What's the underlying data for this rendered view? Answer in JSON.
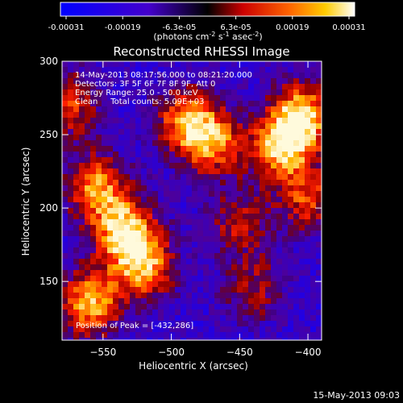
{
  "colorbar": {
    "ticks": [
      "-0.00031",
      "-0.00019",
      "-6.3e-05",
      "6.3e-05",
      "0.00019",
      "0.00031"
    ],
    "unit_main": "(photons cm",
    "unit_sup1": "-2",
    "unit_mid": " s",
    "unit_sup2": "-1",
    "unit_mid2": " asec",
    "unit_sup3": "-2",
    "unit_end": ")",
    "range": [
      -0.00031,
      0.00031
    ],
    "colors": [
      "#0000ff",
      "#5500aa",
      "#000000",
      "#aa0000",
      "#ff5500",
      "#ffcc00",
      "#ffffff"
    ]
  },
  "chart_data": {
    "type": "heatmap",
    "title": "Reconstructed RHESSI Image",
    "xlabel": "Heliocentric X (arcsec)",
    "ylabel": "Heliocentric Y (arcsec)",
    "xlim": [
      -580,
      -390
    ],
    "ylim": [
      110,
      300
    ],
    "xticks": [
      -550,
      -500,
      -450,
      -400
    ],
    "yticks": [
      150,
      200,
      250,
      300
    ],
    "xtick_labels": [
      "−550",
      "−500",
      "−450",
      "−400"
    ],
    "ytick_labels": [
      "150",
      "200",
      "250",
      "300"
    ],
    "peak": [
      -432,
      286
    ],
    "bright_regions": [
      {
        "x": -535,
        "y": 185,
        "intensity": 0.95
      },
      {
        "x": -555,
        "y": 215,
        "intensity": 0.8
      },
      {
        "x": -520,
        "y": 160,
        "intensity": 0.85
      },
      {
        "x": -470,
        "y": 245,
        "intensity": 0.8
      },
      {
        "x": -490,
        "y": 260,
        "intensity": 0.7
      },
      {
        "x": -405,
        "y": 262,
        "intensity": 1.0
      },
      {
        "x": -420,
        "y": 240,
        "intensity": 0.85
      },
      {
        "x": -560,
        "y": 135,
        "intensity": 0.9
      },
      {
        "x": -575,
        "y": 270,
        "intensity": 0.6
      },
      {
        "x": -450,
        "y": 190,
        "intensity": 0.5
      },
      {
        "x": -440,
        "y": 145,
        "intensity": 0.45
      },
      {
        "x": -400,
        "y": 205,
        "intensity": 0.6
      }
    ],
    "annotations": [
      "14-May-2013 08:17:56.000 to 08:21:20.000",
      "Detectors: 3F 5F 6F 7F 8F 9F, Att 0",
      "Energy Range: 25.0 - 50.0 keV",
      "Clean     Total counts: 5.09E+03"
    ],
    "peak_label": "Position of Peak = [-432,286]"
  },
  "footer": {
    "timestamp": "15-May-2013 09:03"
  }
}
